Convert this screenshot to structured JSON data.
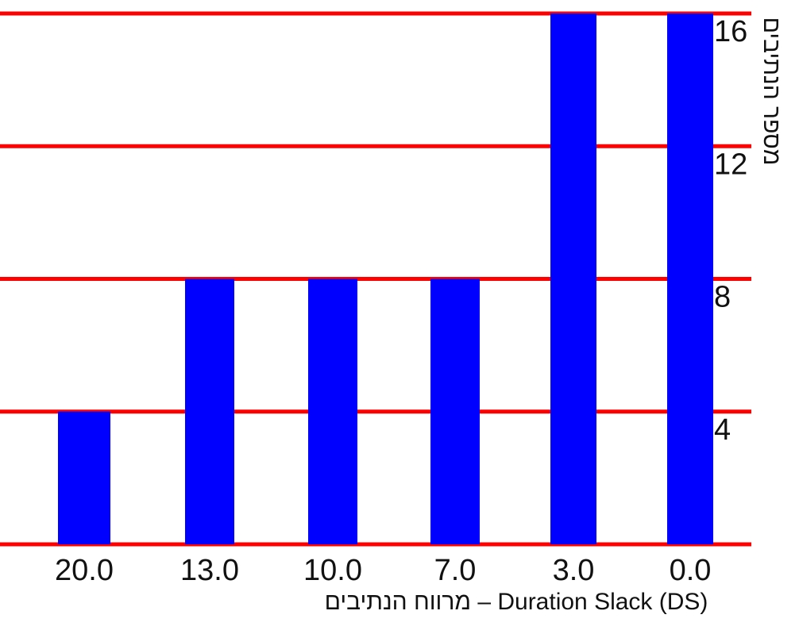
{
  "chart_data": {
    "type": "bar",
    "categories": [
      "20.0",
      "13.0",
      "10.0",
      "7.0",
      "3.0",
      "0.0"
    ],
    "values": [
      4,
      8,
      8,
      8,
      16,
      16
    ],
    "title": "",
    "xlabel": "מרווח הנתיבים – Duration Slack (DS)",
    "ylabel": "מספר הנתיבים",
    "ylim": [
      0,
      16
    ],
    "yticks": [
      4,
      8,
      12,
      16
    ],
    "grid": true,
    "y_axis_side": "right",
    "colors": {
      "bar": "#0000ff",
      "grid": "#ff0000",
      "text": "#111111"
    }
  }
}
